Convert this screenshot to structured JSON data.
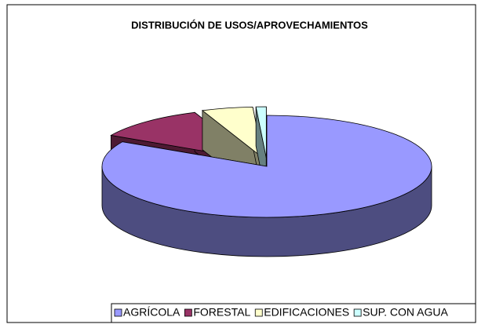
{
  "chart_data": {
    "type": "pie3d",
    "title": "DISTRIBUCIÓN DE USOS/APROVECHAMIENTOS",
    "categories": [
      "AGRÍCOLA",
      "FORESTAL",
      "EDIFICACIONES",
      "SUP. CON AGUA"
    ],
    "values": [
      83,
      11,
      5,
      1
    ],
    "colors": [
      "#9999ff",
      "#993366",
      "#ffffcc",
      "#ccffff"
    ],
    "legend": "bottom"
  }
}
